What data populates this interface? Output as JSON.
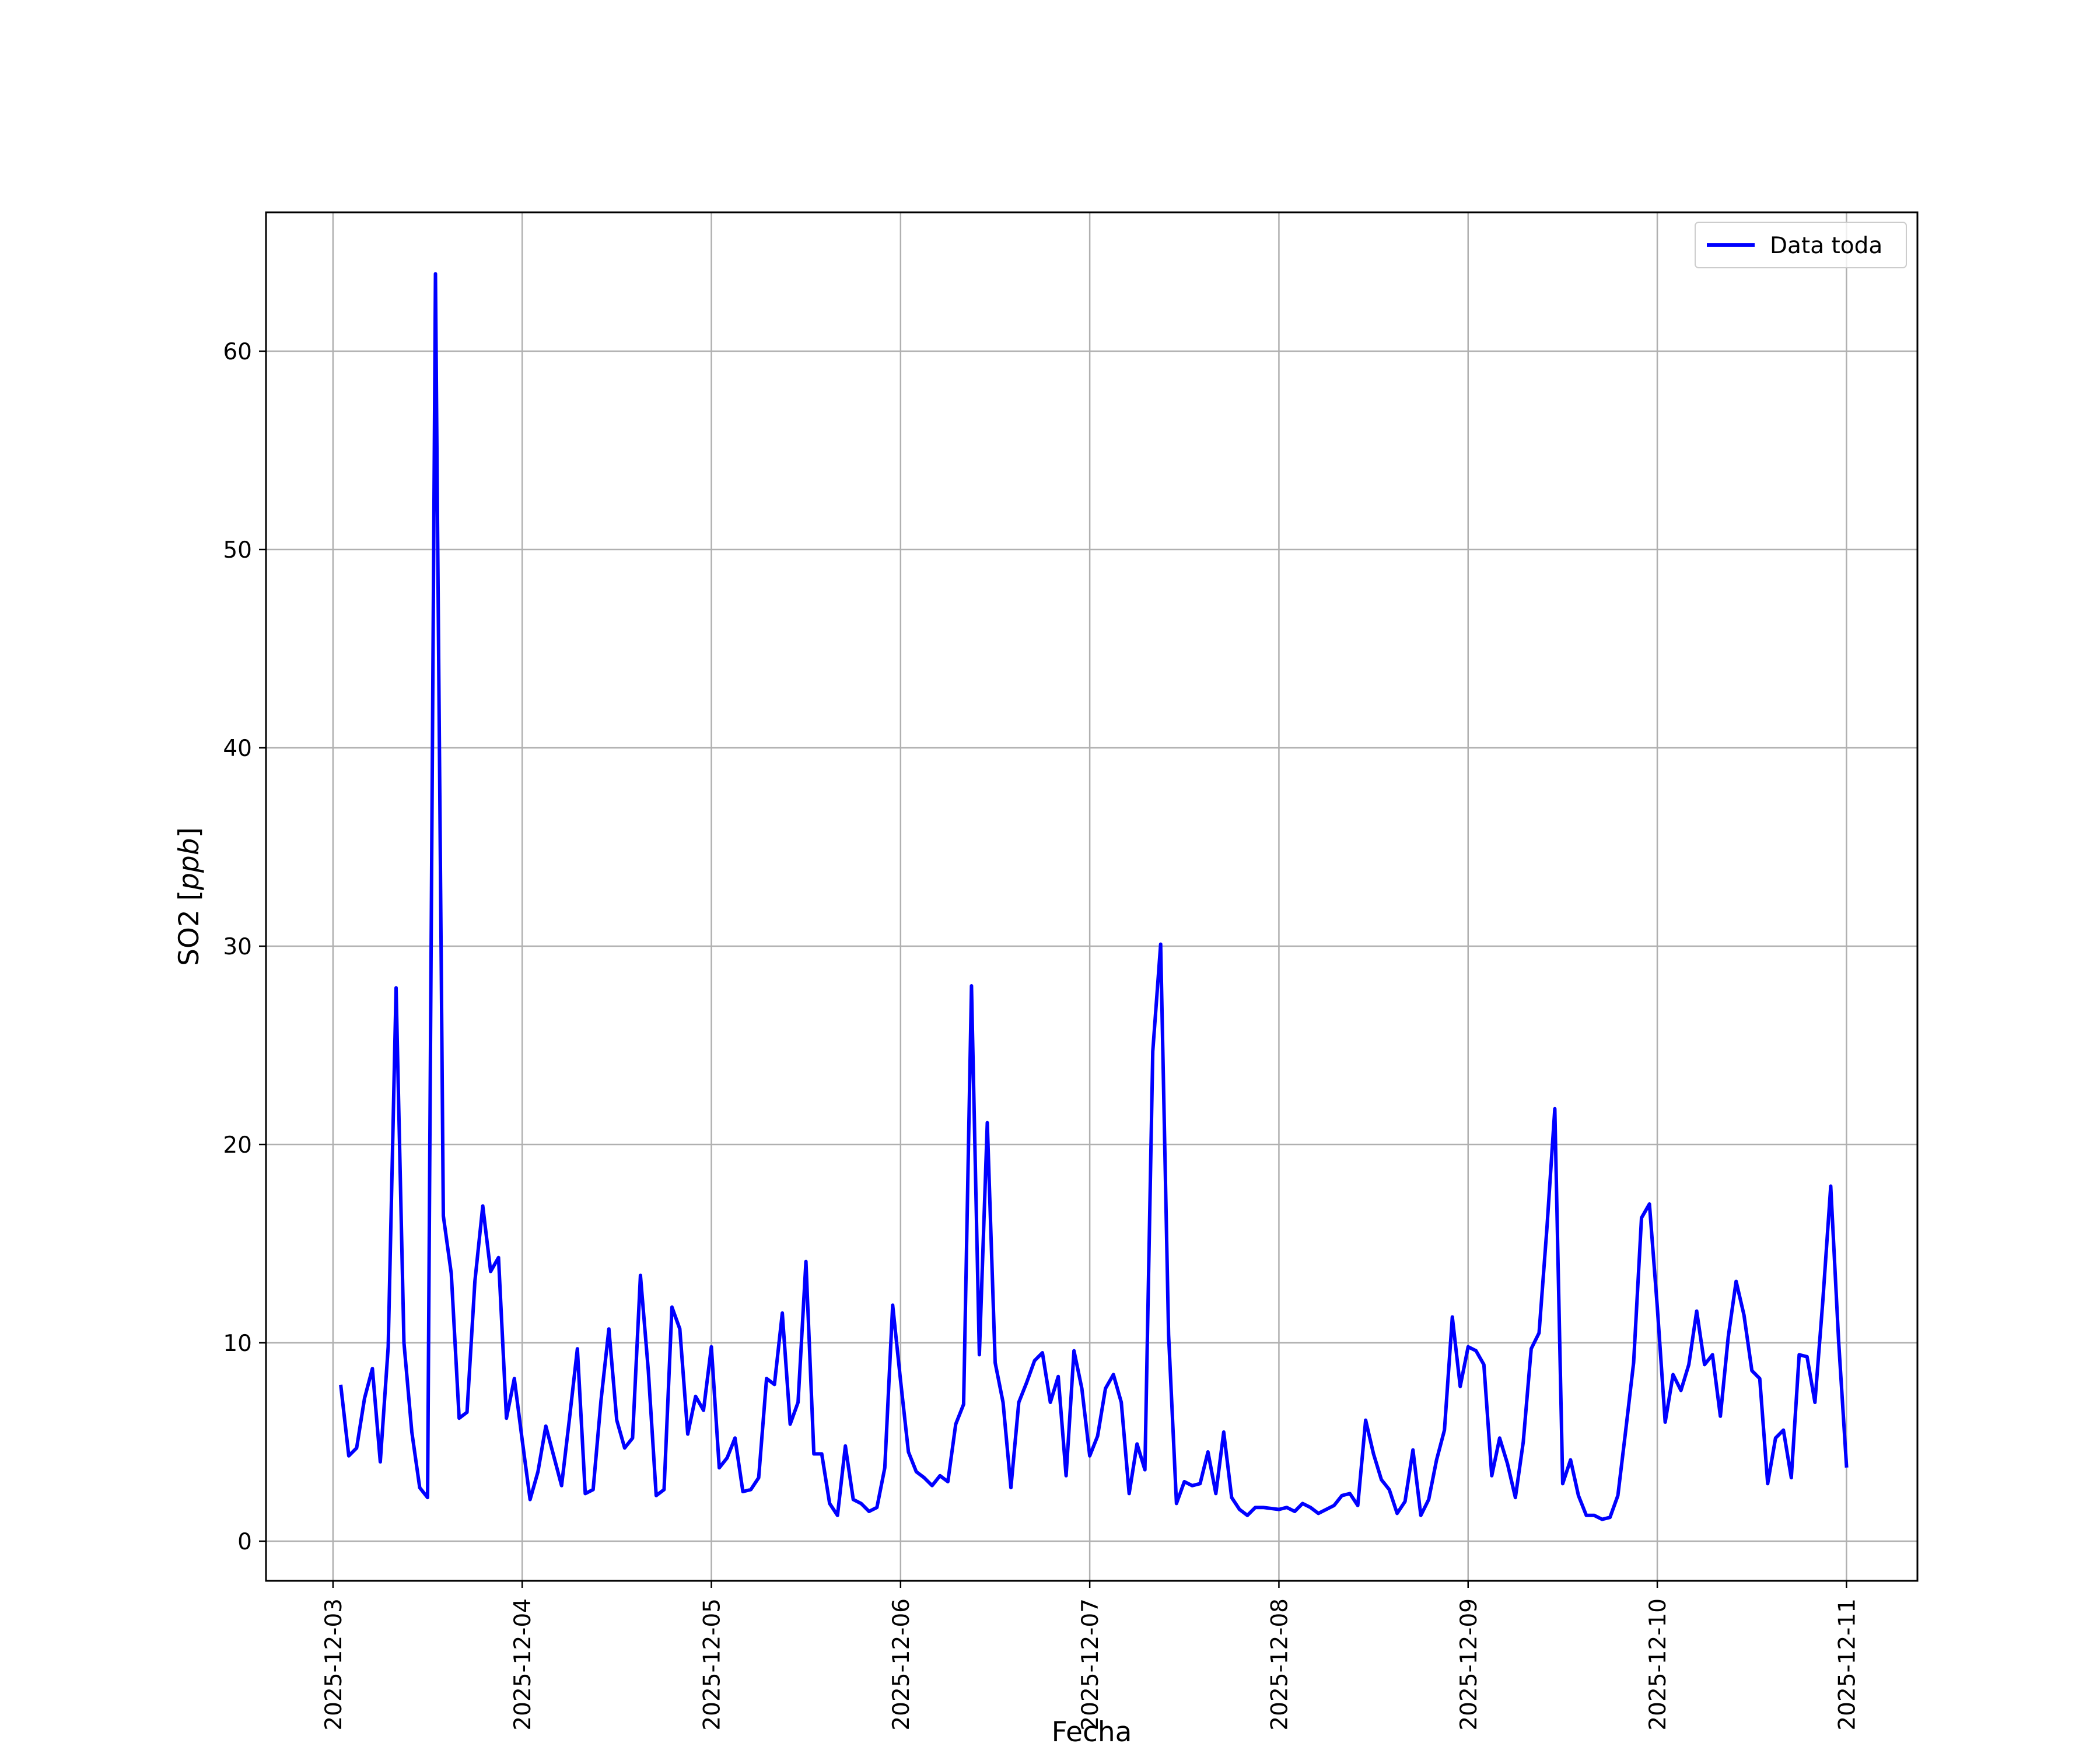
{
  "chart_data": {
    "type": "line",
    "title": "",
    "xlabel": "Fecha",
    "ylabel_main": "SO2 [",
    "ylabel_unit": "ppb",
    "ylabel_close": "]",
    "ylim": [
      -2,
      67
    ],
    "xlim": [
      "2025-12-02 15:30",
      "2025-12-11 09:00"
    ],
    "x_tick_labels": [
      "2025-12-03",
      "2025-12-04",
      "2025-12-05",
      "2025-12-06",
      "2025-12-07",
      "2025-12-08",
      "2025-12-09",
      "2025-12-10",
      "2025-12-11"
    ],
    "y_tick_labels": [
      "0",
      "10",
      "20",
      "30",
      "40",
      "50",
      "60"
    ],
    "grid": true,
    "legend_position": "top-right",
    "colors": {
      "series": "#0000ff",
      "grid": "#b0b0b0",
      "frame": "#000000"
    },
    "series": [
      {
        "name": "Data toda",
        "points": [
          [
            "2025-12-03 01:00",
            7.8
          ],
          [
            "2025-12-03 02:00",
            4.3
          ],
          [
            "2025-12-03 03:00",
            4.7
          ],
          [
            "2025-12-03 04:00",
            7.2
          ],
          [
            "2025-12-03 05:00",
            8.7
          ],
          [
            "2025-12-03 06:00",
            4.0
          ],
          [
            "2025-12-03 07:00",
            9.8
          ],
          [
            "2025-12-03 08:00",
            27.9
          ],
          [
            "2025-12-03 09:00",
            10.0
          ],
          [
            "2025-12-03 10:00",
            5.5
          ],
          [
            "2025-12-03 11:00",
            2.7
          ],
          [
            "2025-12-03 12:00",
            2.2
          ],
          [
            "2025-12-03 13:00",
            63.9
          ],
          [
            "2025-12-03 14:00",
            16.4
          ],
          [
            "2025-12-03 15:00",
            13.5
          ],
          [
            "2025-12-03 16:00",
            6.2
          ],
          [
            "2025-12-03 17:00",
            6.5
          ],
          [
            "2025-12-03 18:00",
            13.1
          ],
          [
            "2025-12-03 19:00",
            16.9
          ],
          [
            "2025-12-03 20:00",
            13.6
          ],
          [
            "2025-12-03 21:00",
            14.3
          ],
          [
            "2025-12-03 22:00",
            6.2
          ],
          [
            "2025-12-03 23:00",
            8.2
          ],
          [
            "2025-12-04 00:00",
            5.1
          ],
          [
            "2025-12-04 01:00",
            2.1
          ],
          [
            "2025-12-04 02:00",
            3.5
          ],
          [
            "2025-12-04 03:00",
            5.8
          ],
          [
            "2025-12-04 04:00",
            4.3
          ],
          [
            "2025-12-04 05:00",
            2.8
          ],
          [
            "2025-12-04 06:00",
            6.2
          ],
          [
            "2025-12-04 07:00",
            9.7
          ],
          [
            "2025-12-04 08:00",
            2.4
          ],
          [
            "2025-12-04 09:00",
            2.6
          ],
          [
            "2025-12-04 10:00",
            7.1
          ],
          [
            "2025-12-04 11:00",
            10.7
          ],
          [
            "2025-12-04 12:00",
            6.1
          ],
          [
            "2025-12-04 13:00",
            4.7
          ],
          [
            "2025-12-04 14:00",
            5.2
          ],
          [
            "2025-12-04 15:00",
            13.4
          ],
          [
            "2025-12-04 16:00",
            8.6
          ],
          [
            "2025-12-04 17:00",
            2.3
          ],
          [
            "2025-12-04 18:00",
            2.6
          ],
          [
            "2025-12-04 19:00",
            11.8
          ],
          [
            "2025-12-04 20:00",
            10.7
          ],
          [
            "2025-12-04 21:00",
            5.4
          ],
          [
            "2025-12-04 22:00",
            7.3
          ],
          [
            "2025-12-04 23:00",
            6.6
          ],
          [
            "2025-12-05 00:00",
            9.8
          ],
          [
            "2025-12-05 01:00",
            3.7
          ],
          [
            "2025-12-05 02:00",
            4.2
          ],
          [
            "2025-12-05 03:00",
            5.2
          ],
          [
            "2025-12-05 04:00",
            2.5
          ],
          [
            "2025-12-05 05:00",
            2.6
          ],
          [
            "2025-12-05 06:00",
            3.2
          ],
          [
            "2025-12-05 07:00",
            8.2
          ],
          [
            "2025-12-05 08:00",
            7.9
          ],
          [
            "2025-12-05 09:00",
            11.5
          ],
          [
            "2025-12-05 10:00",
            5.9
          ],
          [
            "2025-12-05 11:00",
            7.0
          ],
          [
            "2025-12-05 12:00",
            14.1
          ],
          [
            "2025-12-05 13:00",
            4.4
          ],
          [
            "2025-12-05 14:00",
            4.4
          ],
          [
            "2025-12-05 15:00",
            1.9
          ],
          [
            "2025-12-05 16:00",
            1.3
          ],
          [
            "2025-12-05 17:00",
            4.8
          ],
          [
            "2025-12-05 18:00",
            2.1
          ],
          [
            "2025-12-05 19:00",
            1.9
          ],
          [
            "2025-12-05 20:00",
            1.5
          ],
          [
            "2025-12-05 21:00",
            1.7
          ],
          [
            "2025-12-05 22:00",
            3.7
          ],
          [
            "2025-12-05 23:00",
            11.9
          ],
          [
            "2025-12-06 00:00",
            8.1
          ],
          [
            "2025-12-06 01:00",
            4.5
          ],
          [
            "2025-12-06 02:00",
            3.5
          ],
          [
            "2025-12-06 03:00",
            3.2
          ],
          [
            "2025-12-06 04:00",
            2.8
          ],
          [
            "2025-12-06 05:00",
            3.3
          ],
          [
            "2025-12-06 06:00",
            3.0
          ],
          [
            "2025-12-06 07:00",
            5.9
          ],
          [
            "2025-12-06 08:00",
            6.9
          ],
          [
            "2025-12-06 09:00",
            28.0
          ],
          [
            "2025-12-06 10:00",
            9.4
          ],
          [
            "2025-12-06 11:00",
            21.1
          ],
          [
            "2025-12-06 12:00",
            9.0
          ],
          [
            "2025-12-06 13:00",
            7.0
          ],
          [
            "2025-12-06 14:00",
            2.7
          ],
          [
            "2025-12-06 15:00",
            7.0
          ],
          [
            "2025-12-06 16:00",
            8.0
          ],
          [
            "2025-12-06 17:00",
            9.1
          ],
          [
            "2025-12-06 18:00",
            9.5
          ],
          [
            "2025-12-06 19:00",
            7.0
          ],
          [
            "2025-12-06 20:00",
            8.3
          ],
          [
            "2025-12-06 21:00",
            3.3
          ],
          [
            "2025-12-06 22:00",
            9.6
          ],
          [
            "2025-12-06 23:00",
            7.7
          ],
          [
            "2025-12-07 00:00",
            4.3
          ],
          [
            "2025-12-07 01:00",
            5.3
          ],
          [
            "2025-12-07 02:00",
            7.7
          ],
          [
            "2025-12-07 03:00",
            8.4
          ],
          [
            "2025-12-07 04:00",
            7.0
          ],
          [
            "2025-12-07 05:00",
            2.4
          ],
          [
            "2025-12-07 06:00",
            4.9
          ],
          [
            "2025-12-07 07:00",
            3.6
          ],
          [
            "2025-12-07 08:00",
            24.7
          ],
          [
            "2025-12-07 09:00",
            30.1
          ],
          [
            "2025-12-07 10:00",
            10.4
          ],
          [
            "2025-12-07 11:00",
            1.9
          ],
          [
            "2025-12-07 12:00",
            3.0
          ],
          [
            "2025-12-07 13:00",
            2.8
          ],
          [
            "2025-12-07 14:00",
            2.9
          ],
          [
            "2025-12-07 15:00",
            4.5
          ],
          [
            "2025-12-07 16:00",
            2.4
          ],
          [
            "2025-12-07 17:00",
            5.5
          ],
          [
            "2025-12-07 18:00",
            2.2
          ],
          [
            "2025-12-07 19:00",
            1.6
          ],
          [
            "2025-12-07 20:00",
            1.3
          ],
          [
            "2025-12-07 21:00",
            1.7
          ],
          [
            "2025-12-07 22:00",
            1.7
          ],
          [
            "2025-12-08 00:00",
            1.6
          ],
          [
            "2025-12-08 01:00",
            1.7
          ],
          [
            "2025-12-08 02:00",
            1.5
          ],
          [
            "2025-12-08 03:00",
            1.9
          ],
          [
            "2025-12-08 04:00",
            1.7
          ],
          [
            "2025-12-08 05:00",
            1.4
          ],
          [
            "2025-12-08 07:00",
            1.8
          ],
          [
            "2025-12-08 08:00",
            2.3
          ],
          [
            "2025-12-08 09:00",
            2.4
          ],
          [
            "2025-12-08 10:00",
            1.8
          ],
          [
            "2025-12-08 11:00",
            6.1
          ],
          [
            "2025-12-08 12:00",
            4.4
          ],
          [
            "2025-12-08 13:00",
            3.1
          ],
          [
            "2025-12-08 14:00",
            2.6
          ],
          [
            "2025-12-08 15:00",
            1.4
          ],
          [
            "2025-12-08 16:00",
            2.0
          ],
          [
            "2025-12-08 17:00",
            4.6
          ],
          [
            "2025-12-08 18:00",
            1.3
          ],
          [
            "2025-12-08 19:00",
            2.1
          ],
          [
            "2025-12-08 20:00",
            4.1
          ],
          [
            "2025-12-08 21:00",
            5.6
          ],
          [
            "2025-12-08 22:00",
            11.3
          ],
          [
            "2025-12-08 23:00",
            7.8
          ],
          [
            "2025-12-09 00:00",
            9.8
          ],
          [
            "2025-12-09 01:00",
            9.6
          ],
          [
            "2025-12-09 02:00",
            8.9
          ],
          [
            "2025-12-09 03:00",
            3.3
          ],
          [
            "2025-12-09 04:00",
            5.2
          ],
          [
            "2025-12-09 05:00",
            3.9
          ],
          [
            "2025-12-09 06:00",
            2.2
          ],
          [
            "2025-12-09 07:00",
            5.0
          ],
          [
            "2025-12-09 08:00",
            9.7
          ],
          [
            "2025-12-09 09:00",
            10.5
          ],
          [
            "2025-12-09 10:00",
            15.8
          ],
          [
            "2025-12-09 11:00",
            21.8
          ],
          [
            "2025-12-09 12:00",
            2.9
          ],
          [
            "2025-12-09 13:00",
            4.1
          ],
          [
            "2025-12-09 14:00",
            2.3
          ],
          [
            "2025-12-09 15:00",
            1.3
          ],
          [
            "2025-12-09 16:00",
            1.3
          ],
          [
            "2025-12-09 17:00",
            1.1
          ],
          [
            "2025-12-09 18:00",
            1.2
          ],
          [
            "2025-12-09 19:00",
            2.3
          ],
          [
            "2025-12-09 20:00",
            5.6
          ],
          [
            "2025-12-09 21:00",
            9.0
          ],
          [
            "2025-12-09 22:00",
            16.3
          ],
          [
            "2025-12-09 23:00",
            17.0
          ],
          [
            "2025-12-10 00:00",
            11.8
          ],
          [
            "2025-12-10 01:00",
            6.0
          ],
          [
            "2025-12-10 02:00",
            8.4
          ],
          [
            "2025-12-10 03:00",
            7.6
          ],
          [
            "2025-12-10 04:00",
            8.9
          ],
          [
            "2025-12-10 05:00",
            11.6
          ],
          [
            "2025-12-10 06:00",
            8.9
          ],
          [
            "2025-12-10 07:00",
            9.4
          ],
          [
            "2025-12-10 08:00",
            6.3
          ],
          [
            "2025-12-10 09:00",
            10.3
          ],
          [
            "2025-12-10 10:00",
            13.1
          ],
          [
            "2025-12-10 11:00",
            11.4
          ],
          [
            "2025-12-10 12:00",
            8.6
          ],
          [
            "2025-12-10 13:00",
            8.2
          ],
          [
            "2025-12-10 14:00",
            2.9
          ],
          [
            "2025-12-10 15:00",
            5.2
          ],
          [
            "2025-12-10 16:00",
            5.6
          ],
          [
            "2025-12-10 17:00",
            3.2
          ],
          [
            "2025-12-10 18:00",
            9.4
          ],
          [
            "2025-12-10 19:00",
            9.3
          ],
          [
            "2025-12-10 20:00",
            7.0
          ],
          [
            "2025-12-10 21:00",
            12.1
          ],
          [
            "2025-12-10 22:00",
            17.9
          ],
          [
            "2025-12-10 23:00",
            10.1
          ],
          [
            "2025-12-11 00:00",
            3.8
          ]
        ]
      }
    ]
  }
}
